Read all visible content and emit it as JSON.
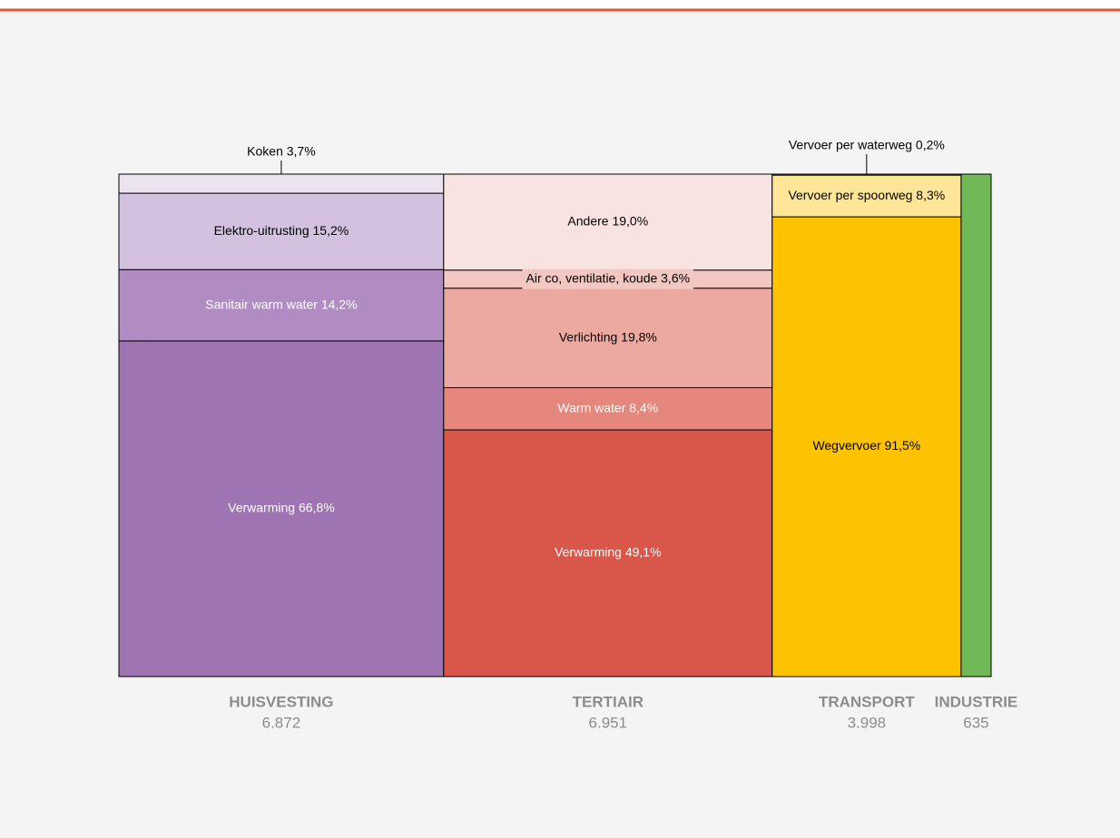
{
  "chart_data": {
    "type": "marimekko",
    "ylim": [
      0,
      100
    ],
    "columns": [
      {
        "name": "HUISVESTING",
        "value": 6872,
        "value_label": "6.872",
        "color": "#9e74b3",
        "segments": [
          {
            "value": 66.8,
            "label": "Verwarming 66,8%",
            "color": "#9e74b3",
            "label_color": "#ffffff"
          },
          {
            "value": 14.2,
            "label": "Sanitair warm water 14,2%",
            "color": "#b08cc2",
            "label_color": "#ffffff"
          },
          {
            "value": 15.2,
            "label": "Elektro-uitrusting 15,2%",
            "color": "#d3c1df",
            "label_color": "#000000"
          },
          {
            "value": 3.7,
            "label": "Koken 3,7%",
            "color": "#ebe3f0",
            "label_color": "#000000"
          }
        ]
      },
      {
        "name": "TERTIAIR",
        "value": 6951,
        "value_label": "6.951",
        "color": "#d9574a",
        "segments": [
          {
            "value": 49.1,
            "label": "Verwarming 49,1%",
            "color": "#d9574a",
            "label_color": "#ffffff"
          },
          {
            "value": 8.4,
            "label": "Warm water 8,4%",
            "color": "#e5877c",
            "label_color": "#ffffff"
          },
          {
            "value": 19.8,
            "label": "Verlichting 19,8%",
            "color": "#eca9a1",
            "label_color": "#000000"
          },
          {
            "value": 3.6,
            "label": "Air co, ventilatie, koude 3,6%",
            "color": "#f2c6c1",
            "label_color": "#000000"
          },
          {
            "value": 19.0,
            "label": "Andere 19,0%",
            "color": "#f9e3e1",
            "label_color": "#000000"
          }
        ]
      },
      {
        "name": "TRANSPORT",
        "value": 3998,
        "value_label": "3.998",
        "color": "#fdc300",
        "segments": [
          {
            "value": 91.5,
            "label": "Wegvervoer 91,5%",
            "color": "#fdc300",
            "label_color": "#000000"
          },
          {
            "value": 8.3,
            "label": "Vervoer per spoorweg 8,3%",
            "color": "#fee597",
            "label_color": "#000000"
          },
          {
            "value": 0.2,
            "label": "Vervoer per waterweg 0,2%",
            "color": "#fef3cd",
            "label_color": "#000000"
          }
        ]
      },
      {
        "name": "INDUSTRIE",
        "value": 635,
        "value_label": "635",
        "color": "#70b858",
        "segments": []
      }
    ]
  }
}
